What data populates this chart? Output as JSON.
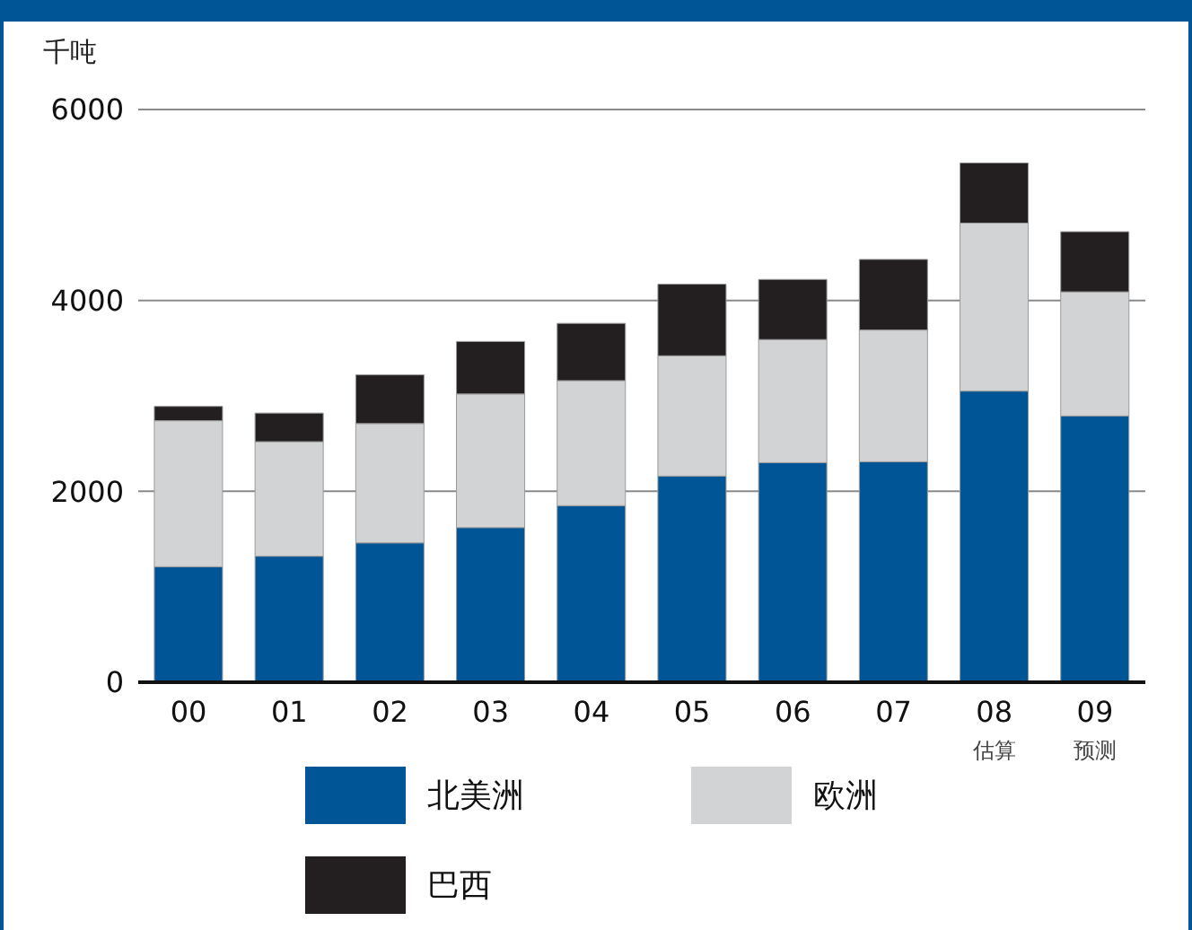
{
  "chart_data": {
    "type": "bar",
    "stacked": true,
    "ylabel": "千吨",
    "categories": [
      "00",
      "01",
      "02",
      "03",
      "04",
      "05",
      "06",
      "07",
      "08\n估算",
      "09\n预测"
    ],
    "series": [
      {
        "name": "北美洲",
        "color": "#005597",
        "values": [
          1210,
          1320,
          1460,
          1620,
          1850,
          2160,
          2300,
          2310,
          3050,
          2790
        ]
      },
      {
        "name": "欧洲",
        "color": "#d1d3d4",
        "values": [
          1530,
          1200,
          1250,
          1400,
          1310,
          1260,
          1290,
          1380,
          1760,
          1300
        ]
      },
      {
        "name": "巴西",
        "color": "#231f20",
        "values": [
          150,
          300,
          510,
          550,
          600,
          750,
          630,
          740,
          630,
          630
        ]
      }
    ],
    "ylim": [
      0,
      6000
    ],
    "yticks": [
      0,
      2000,
      4000,
      6000
    ],
    "grid": "y",
    "legend": "bottom"
  }
}
